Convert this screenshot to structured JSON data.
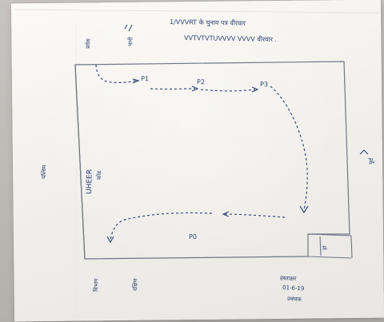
{
  "ink_color": "#2d3f72",
  "paper_color": "#f3f1ee",
  "background_color": "#bdbab6",
  "notes": {
    "line_1": "1/VVVRT के चुनाव पत्र वीरवार",
    "line_2": "VVTVTVTUVVVV VVVV वीरवार ."
  },
  "top_marks": {
    "left": "प्रवेश",
    "right": "पानी"
  },
  "path_labels": {
    "p1": "P1",
    "p2": "P2",
    "p3": "P3",
    "p0": "P0"
  },
  "left_side_label": "पश्चिम",
  "right_side_label": "पूर्व",
  "center_label_1": "UHEER",
  "center_label_2": "कोड",
  "bottom_box_label": "हां",
  "bottom_labels": {
    "left_1": "विभाग",
    "left_2": "दक्षिण",
    "signature_1": "हस्ताक्षर",
    "signature_2": "01-6-19",
    "signature_3": "प्रबंधक"
  }
}
